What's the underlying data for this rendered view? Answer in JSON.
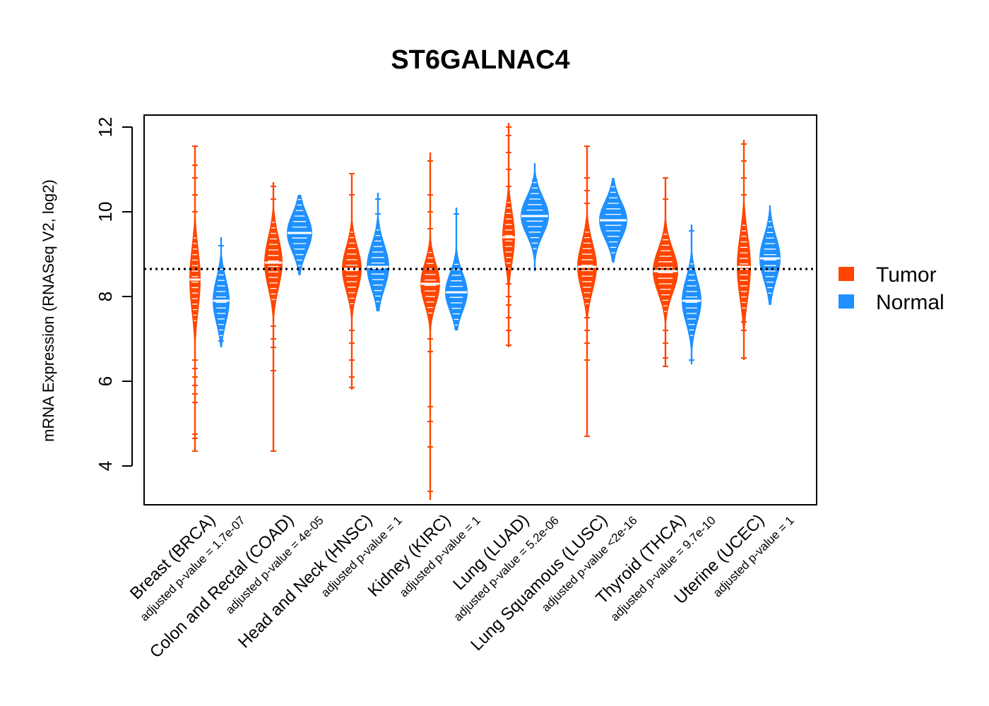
{
  "chart_data": {
    "type": "violin",
    "title": "ST6GALNAC4",
    "ylabel": "mRNA Expression (RNASeq V2, log2)",
    "xlabel": "",
    "ylim": [
      3.1,
      12.3
    ],
    "yticks": [
      "4",
      "6",
      "8",
      "10",
      "12"
    ],
    "reference_line": 8.65,
    "legend": {
      "position": "right",
      "entries": [
        {
          "name": "Tumor",
          "color": "#ff4500"
        },
        {
          "name": "Normal",
          "color": "#1e90ff"
        }
      ]
    },
    "categories": [
      {
        "name": "Breast (BRCA)",
        "pvalue": "adjusted p-value = 1.7e-07",
        "tumor": {
          "median": 8.4,
          "q1": 7.9,
          "q3": 8.9,
          "min": 4.35,
          "max": 11.55,
          "halfwidth": 8,
          "outliers": [
            4.35,
            4.65,
            4.75,
            5.5,
            5.7,
            5.9,
            6.1,
            6.3,
            6.5,
            10.0,
            10.4,
            10.8,
            11.1,
            11.55
          ]
        },
        "normal": {
          "median": 7.9,
          "q1": 7.55,
          "q3": 8.25,
          "min": 6.8,
          "max": 9.4,
          "halfwidth": 12,
          "outliers": [
            6.95,
            9.2
          ]
        }
      },
      {
        "name": "Colon and Rectal (COAD)",
        "pvalue": "adjusted p-value = 4e-05",
        "tumor": {
          "median": 8.8,
          "q1": 8.4,
          "q3": 9.2,
          "min": 4.35,
          "max": 10.7,
          "halfwidth": 13,
          "outliers": [
            4.35,
            6.25,
            6.8,
            7.0,
            7.3,
            10.3,
            10.6
          ]
        },
        "normal": {
          "median": 9.5,
          "q1": 9.2,
          "q3": 9.8,
          "min": 8.5,
          "max": 10.4,
          "halfwidth": 18,
          "outliers": []
        }
      },
      {
        "name": "Head and Neck (HNSC)",
        "pvalue": "adjusted p-value = 1",
        "tumor": {
          "median": 8.65,
          "q1": 8.3,
          "q3": 9.0,
          "min": 5.8,
          "max": 10.9,
          "halfwidth": 14,
          "outliers": [
            5.85,
            6.1,
            6.5,
            6.9,
            7.2,
            10.4,
            10.9
          ]
        },
        "normal": {
          "median": 8.7,
          "q1": 8.35,
          "q3": 9.05,
          "min": 7.65,
          "max": 10.45,
          "halfwidth": 16,
          "outliers": [
            9.95,
            10.3
          ]
        }
      },
      {
        "name": "Kidney (KIRC)",
        "pvalue": "adjusted p-value = 1",
        "tumor": {
          "median": 8.3,
          "q1": 7.95,
          "q3": 8.6,
          "min": 3.2,
          "max": 11.4,
          "halfwidth": 14,
          "outliers": [
            3.4,
            4.45,
            5.05,
            5.4,
            6.7,
            7.0,
            9.6,
            10.0,
            10.4,
            11.2
          ]
        },
        "normal": {
          "median": 8.1,
          "q1": 7.8,
          "q3": 8.4,
          "min": 7.2,
          "max": 10.1,
          "halfwidth": 16,
          "outliers": [
            9.95
          ]
        }
      },
      {
        "name": "Lung (LUAD)",
        "pvalue": "adjusted p-value = 5.2e-06",
        "tumor": {
          "median": 9.4,
          "q1": 9.0,
          "q3": 9.8,
          "min": 6.8,
          "max": 12.1,
          "halfwidth": 9,
          "outliers": [
            6.85,
            7.2,
            7.5,
            7.8,
            8.0,
            8.3,
            10.6,
            11.0,
            11.4,
            11.8,
            12.0
          ]
        },
        "normal": {
          "median": 9.9,
          "q1": 9.6,
          "q3": 10.2,
          "min": 8.6,
          "max": 11.15,
          "halfwidth": 20,
          "outliers": [
            10.75
          ]
        }
      },
      {
        "name": "Lung Squamous (LUSC)",
        "pvalue": "adjusted p-value <2e-16",
        "tumor": {
          "median": 8.7,
          "q1": 8.3,
          "q3": 9.05,
          "min": 4.7,
          "max": 11.55,
          "halfwidth": 14,
          "outliers": [
            4.7,
            6.5,
            6.9,
            7.2,
            7.5,
            10.2,
            10.5,
            10.8,
            11.55
          ]
        },
        "normal": {
          "median": 9.8,
          "q1": 9.5,
          "q3": 10.1,
          "min": 8.8,
          "max": 10.8,
          "halfwidth": 20,
          "outliers": []
        }
      },
      {
        "name": "Thyroid (THCA)",
        "pvalue": "adjusted p-value = 9.7e-10",
        "tumor": {
          "median": 8.6,
          "q1": 8.25,
          "q3": 8.95,
          "min": 6.35,
          "max": 10.8,
          "halfwidth": 18,
          "outliers": [
            6.35,
            6.55,
            6.9,
            7.2,
            10.3,
            10.8
          ]
        },
        "normal": {
          "median": 7.9,
          "q1": 7.55,
          "q3": 8.25,
          "min": 6.4,
          "max": 9.7,
          "halfwidth": 14,
          "outliers": [
            6.5,
            9.55
          ]
        }
      },
      {
        "name": "Uterine (UCEC)",
        "pvalue": "adjusted p-value = 1",
        "tumor": {
          "median": 8.7,
          "q1": 8.2,
          "q3": 9.2,
          "min": 6.5,
          "max": 11.7,
          "halfwidth": 10,
          "outliers": [
            6.55,
            7.2,
            7.4,
            10.4,
            10.8,
            11.2,
            11.6
          ]
        },
        "normal": {
          "median": 8.9,
          "q1": 8.55,
          "q3": 9.25,
          "min": 7.8,
          "max": 10.15,
          "halfwidth": 15,
          "outliers": []
        }
      }
    ]
  }
}
